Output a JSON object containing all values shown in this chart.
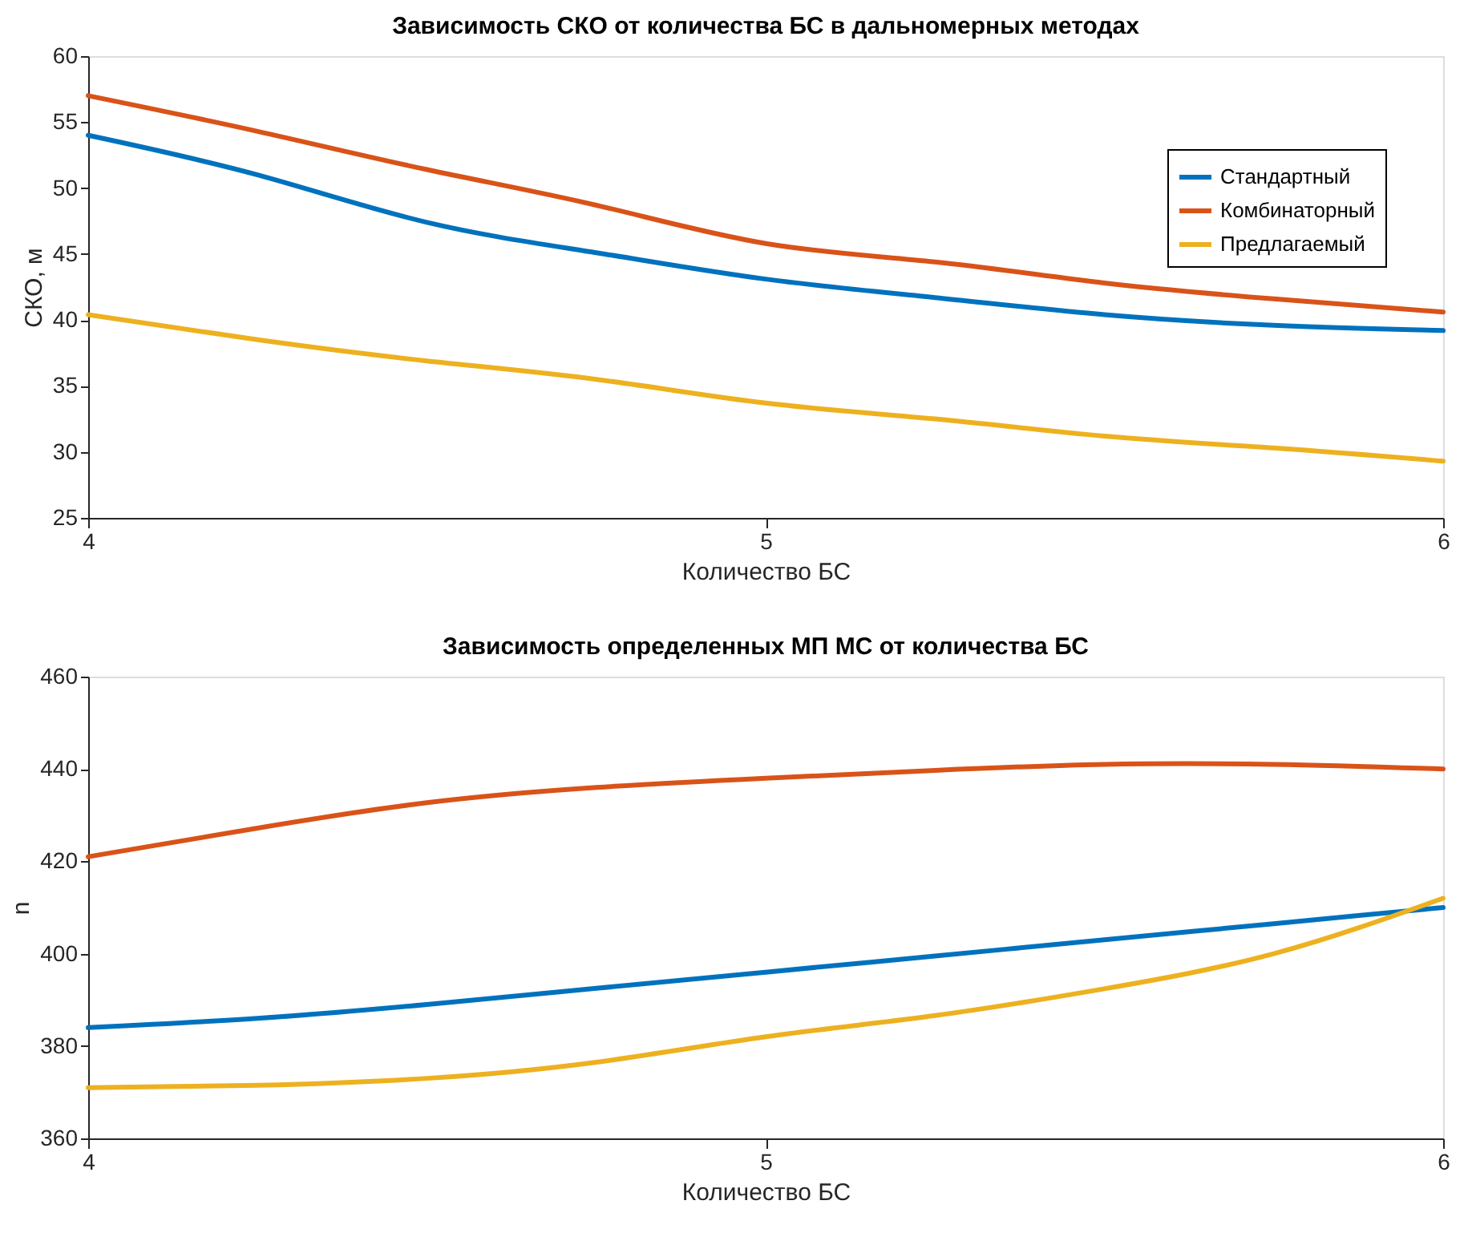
{
  "chart_data": [
    {
      "type": "line",
      "title": "Зависимость СКО от количества БС в дальномерных методах",
      "xlabel": "Количество БС",
      "ylabel": "СКО, м",
      "x": [
        4,
        4.25,
        4.5,
        4.75,
        5,
        5.25,
        5.5,
        5.75,
        6
      ],
      "series": [
        {
          "name": "Стандартный",
          "color": "#0072bd",
          "values": [
            54,
            51.0,
            47.4,
            45.1,
            43.1,
            41.7,
            40.4,
            39.6,
            39.2
          ]
        },
        {
          "name": "Комбинаторный",
          "color": "#d95319",
          "values": [
            57,
            54.3,
            51.4,
            48.7,
            45.8,
            44.4,
            42.8,
            41.6,
            40.6
          ]
        },
        {
          "name": "Предлагаемый",
          "color": "#edb120",
          "values": [
            40.4,
            38.5,
            36.9,
            35.5,
            33.7,
            32.5,
            31.2,
            30.3,
            29.3
          ]
        }
      ],
      "xlim": [
        4,
        6
      ],
      "xticks": [
        4,
        5,
        6
      ],
      "ylim": [
        25,
        60
      ],
      "yticks": [
        25,
        30,
        35,
        40,
        45,
        50,
        55,
        60
      ],
      "grid": false,
      "legend": "top right",
      "marker": "none",
      "line_style": "solid"
    },
    {
      "type": "line",
      "title": "Зависимость определенных МП МС от количества БС",
      "xlabel": "Количество БС",
      "ylabel": "n",
      "x": [
        4,
        4.25,
        4.5,
        4.75,
        5,
        5.25,
        5.5,
        5.75,
        6
      ],
      "series": [
        {
          "name": "Стандартный",
          "color": "#0072bd",
          "values": [
            384,
            386,
            389,
            392.5,
            396,
            399.5,
            403,
            406.5,
            410
          ]
        },
        {
          "name": "Комбинаторный",
          "color": "#d95319",
          "values": [
            421,
            427.2,
            432.7,
            436,
            438,
            439.7,
            441,
            441,
            440
          ]
        },
        {
          "name": "Предлагаемый",
          "color": "#edb120",
          "values": [
            371,
            371.5,
            373,
            376.5,
            382,
            386.6,
            392.4,
            400,
            412
          ]
        }
      ],
      "xlim": [
        4,
        6
      ],
      "xticks": [
        4,
        5,
        6
      ],
      "ylim": [
        360,
        460
      ],
      "yticks": [
        360,
        380,
        400,
        420,
        440,
        460
      ],
      "grid": false,
      "legend": "top right",
      "marker": "none",
      "line_style": "solid"
    }
  ]
}
